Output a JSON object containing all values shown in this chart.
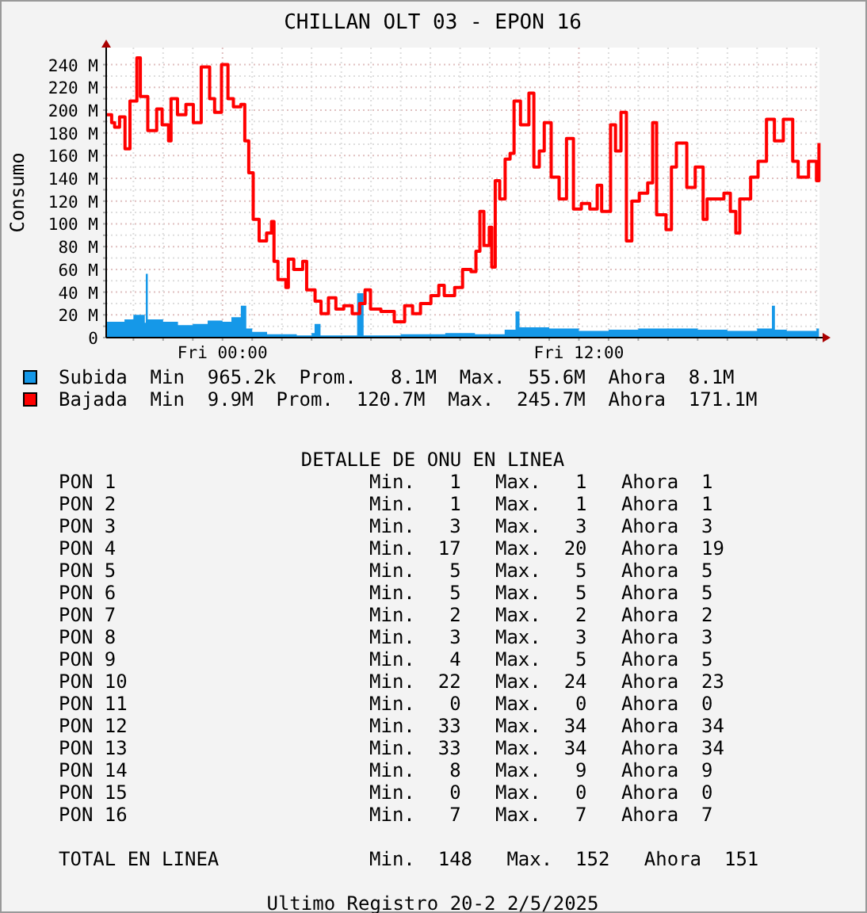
{
  "chart_data": {
    "type": "line",
    "title": "CHILLAN OLT 03 - EPON 16",
    "ylabel": "Consumo",
    "xlim": [
      "2025-05-01T20:05",
      "2025-05-02T20:06"
    ],
    "xticks": [
      {
        "value": "2025-05-01T21:00",
        "label": null
      },
      {
        "value": "2025-05-01T22:00",
        "label": null
      },
      {
        "value": "2025-05-01T23:00",
        "label": null
      },
      {
        "value": "2025-05-02T00:00",
        "label": "Fri 00:00"
      },
      {
        "value": "2025-05-02T01:00",
        "label": null
      },
      {
        "value": "2025-05-02T02:00",
        "label": null
      },
      {
        "value": "2025-05-02T03:00",
        "label": null
      },
      {
        "value": "2025-05-02T04:00",
        "label": null
      },
      {
        "value": "2025-05-02T05:00",
        "label": null
      },
      {
        "value": "2025-05-02T06:00",
        "label": null
      },
      {
        "value": "2025-05-02T07:00",
        "label": null
      },
      {
        "value": "2025-05-02T08:00",
        "label": null
      },
      {
        "value": "2025-05-02T09:00",
        "label": null
      },
      {
        "value": "2025-05-02T10:00",
        "label": null
      },
      {
        "value": "2025-05-02T11:00",
        "label": null
      },
      {
        "value": "2025-05-02T12:00",
        "label": "Fri 12:00"
      },
      {
        "value": "2025-05-02T13:00",
        "label": null
      },
      {
        "value": "2025-05-02T14:00",
        "label": null
      },
      {
        "value": "2025-05-02T15:00",
        "label": null
      },
      {
        "value": "2025-05-02T16:00",
        "label": null
      },
      {
        "value": "2025-05-02T17:00",
        "label": null
      },
      {
        "value": "2025-05-02T18:00",
        "label": null
      },
      {
        "value": "2025-05-02T19:00",
        "label": null
      },
      {
        "value": "2025-05-02T20:00",
        "label": null
      }
    ],
    "ylim": [
      0,
      255
    ],
    "yticks": [
      {
        "value": 0,
        "label": "0"
      },
      {
        "value": 10,
        "label": null
      },
      {
        "value": 20,
        "label": "20 M"
      },
      {
        "value": 30,
        "label": null
      },
      {
        "value": 40,
        "label": "40 M"
      },
      {
        "value": 50,
        "label": null
      },
      {
        "value": 60,
        "label": "60 M"
      },
      {
        "value": 70,
        "label": null
      },
      {
        "value": 80,
        "label": "80 M"
      },
      {
        "value": 90,
        "label": null
      },
      {
        "value": 100,
        "label": "100 M"
      },
      {
        "value": 110,
        "label": null
      },
      {
        "value": 120,
        "label": "120 M"
      },
      {
        "value": 130,
        "label": null
      },
      {
        "value": 140,
        "label": "140 M"
      },
      {
        "value": 150,
        "label": null
      },
      {
        "value": 160,
        "label": "160 M"
      },
      {
        "value": 170,
        "label": null
      },
      {
        "value": 180,
        "label": "180 M"
      },
      {
        "value": 190,
        "label": null
      },
      {
        "value": 200,
        "label": "200 M"
      },
      {
        "value": 210,
        "label": null
      },
      {
        "value": 220,
        "label": "220 M"
      },
      {
        "value": 230,
        "label": null
      },
      {
        "value": 240,
        "label": "240 M"
      }
    ],
    "grid": true,
    "legend": "bottom",
    "series": [
      {
        "name": "Subida",
        "type": "area",
        "color": "#1598e8",
        "x": [
          "2025-05-01T20:05",
          "2025-05-01T20:42",
          "2025-05-01T21:00",
          "2025-05-01T21:23",
          "2025-05-01T21:25",
          "2025-05-01T21:29",
          "2025-05-01T22:00",
          "2025-05-01T22:30",
          "2025-05-01T23:00",
          "2025-05-01T23:30",
          "2025-05-02T00:00",
          "2025-05-02T00:18",
          "2025-05-02T00:37",
          "2025-05-02T00:48",
          "2025-05-02T01:00",
          "2025-05-02T01:30",
          "2025-05-02T02:30",
          "2025-05-02T03:00",
          "2025-05-02T03:06",
          "2025-05-02T03:18",
          "2025-05-02T04:30",
          "2025-05-02T04:32",
          "2025-05-02T04:45",
          "2025-05-02T06:00",
          "2025-05-02T07:30",
          "2025-05-02T08:30",
          "2025-05-02T09:30",
          "2025-05-02T09:52",
          "2025-05-02T10:00",
          "2025-05-02T11:00",
          "2025-05-02T12:00",
          "2025-05-02T13:00",
          "2025-05-02T14:00",
          "2025-05-02T15:00",
          "2025-05-02T16:00",
          "2025-05-02T17:00",
          "2025-05-02T18:00",
          "2025-05-02T18:30",
          "2025-05-02T18:36",
          "2025-05-02T19:00",
          "2025-05-02T20:00",
          "2025-05-02T20:05"
        ],
        "values": [
          14,
          16,
          20,
          13,
          56,
          16,
          14,
          11,
          12,
          15,
          14,
          18,
          28,
          8,
          5,
          3,
          2,
          4,
          12,
          2,
          2,
          39,
          2,
          3,
          4,
          3,
          7,
          23,
          9,
          8,
          6,
          7,
          8,
          8,
          7,
          6,
          8,
          28,
          7,
          6,
          8,
          8
        ]
      },
      {
        "name": "Bajada",
        "type": "step",
        "color": "#ff0000",
        "x": [
          "2025-05-01T20:05",
          "2025-05-01T20:16",
          "2025-05-01T20:22",
          "2025-05-01T20:32",
          "2025-05-01T20:43",
          "2025-05-01T20:53",
          "2025-05-01T21:07",
          "2025-05-01T21:14",
          "2025-05-01T21:29",
          "2025-05-01T21:47",
          "2025-05-01T21:58",
          "2025-05-01T22:11",
          "2025-05-01T22:16",
          "2025-05-01T22:29",
          "2025-05-01T22:46",
          "2025-05-01T23:01",
          "2025-05-01T23:17",
          "2025-05-01T23:34",
          "2025-05-01T23:44",
          "2025-05-01T23:58",
          "2025-05-02T00:11",
          "2025-05-02T00:22",
          "2025-05-02T00:37",
          "2025-05-02T00:45",
          "2025-05-02T00:53",
          "2025-05-02T01:02",
          "2025-05-02T01:14",
          "2025-05-02T01:29",
          "2025-05-02T01:39",
          "2025-05-02T01:44",
          "2025-05-02T01:52",
          "2025-05-02T02:08",
          "2025-05-02T02:13",
          "2025-05-02T02:24",
          "2025-05-02T02:42",
          "2025-05-02T02:50",
          "2025-05-02T03:07",
          "2025-05-02T03:19",
          "2025-05-02T03:34",
          "2025-05-02T03:49",
          "2025-05-02T04:05",
          "2025-05-02T04:22",
          "2025-05-02T04:37",
          "2025-05-02T04:48",
          "2025-05-02T04:59",
          "2025-05-02T05:20",
          "2025-05-02T05:47",
          "2025-05-02T06:08",
          "2025-05-02T06:24",
          "2025-05-02T06:40",
          "2025-05-02T06:56",
          "2025-05-02T07:01",
          "2025-05-02T07:17",
          "2025-05-02T07:28",
          "2025-05-02T07:49",
          "2025-05-02T08:05",
          "2025-05-02T08:22",
          "2025-05-02T08:32",
          "2025-05-02T08:40",
          "2025-05-02T08:48",
          "2025-05-02T08:59",
          "2025-05-02T09:04",
          "2025-05-02T09:11",
          "2025-05-02T09:20",
          "2025-05-02T09:31",
          "2025-05-02T09:41",
          "2025-05-02T09:49",
          "2025-05-02T10:02",
          "2025-05-02T10:19",
          "2025-05-02T10:29",
          "2025-05-02T10:40",
          "2025-05-02T10:50",
          "2025-05-02T11:04",
          "2025-05-02T11:20",
          "2025-05-02T11:35",
          "2025-05-02T11:49",
          "2025-05-02T12:05",
          "2025-05-02T12:22",
          "2025-05-02T12:37",
          "2025-05-02T12:46",
          "2025-05-02T13:04",
          "2025-05-02T13:14",
          "2025-05-02T13:25",
          "2025-05-02T13:36",
          "2025-05-02T13:47",
          "2025-05-02T14:02",
          "2025-05-02T14:19",
          "2025-05-02T14:29",
          "2025-05-02T14:37",
          "2025-05-02T14:56",
          "2025-05-02T15:07",
          "2025-05-02T15:17",
          "2025-05-02T15:38",
          "2025-05-02T15:55",
          "2025-05-02T16:11",
          "2025-05-02T16:19",
          "2025-05-02T16:37",
          "2025-05-02T16:53",
          "2025-05-02T17:06",
          "2025-05-02T17:17",
          "2025-05-02T17:25",
          "2025-05-02T17:47",
          "2025-05-02T18:02",
          "2025-05-02T18:19",
          "2025-05-02T18:35",
          "2025-05-02T18:53",
          "2025-05-02T19:12",
          "2025-05-02T19:23",
          "2025-05-02T19:44",
          "2025-05-02T20:00",
          "2025-05-02T20:05"
        ],
        "values": [
          196,
          189,
          185,
          194,
          166,
          208,
          246,
          212,
          182,
          201,
          187,
          173,
          210,
          196,
          205,
          189,
          238,
          210,
          198,
          240,
          210,
          203,
          205,
          173,
          145,
          104,
          85,
          92,
          102,
          67,
          51,
          44,
          69,
          60,
          67,
          42,
          32,
          21,
          35,
          25,
          28,
          21,
          30,
          42,
          25,
          23,
          14,
          28,
          21,
          30,
          30,
          37,
          46,
          37,
          44,
          60,
          58,
          76,
          111,
          81,
          97,
          62,
          138,
          122,
          157,
          162,
          208,
          187,
          215,
          150,
          164,
          189,
          141,
          122,
          175,
          113,
          118,
          113,
          134,
          111,
          187,
          164,
          198,
          85,
          120,
          127,
          136,
          189,
          108,
          95,
          150,
          171,
          132,
          150,
          104,
          122,
          122,
          127,
          111,
          92,
          122,
          141,
          155,
          192,
          173,
          192,
          155,
          141,
          155,
          138,
          171
        ]
      }
    ],
    "annotations": [
      "Min  965.2k  Prom.   8.1M  Max.  55.6M  Ahora  8.1M",
      "Min  9.9M  Prom.  120.7M  Max.  245.7M  Ahora  171.1M",
      "DETALLE DE ONU EN LINEA",
      "PON 1",
      "Min.   1   Max.   1   Ahora  1",
      "PON 2",
      "Min.   1   Max.   1   Ahora  1",
      "PON 3",
      "Min.   3   Max.   3   Ahora  3",
      "PON 4",
      "Min.  17   Max.  20   Ahora  19",
      "PON 5",
      "Min.   5   Max.   5   Ahora  5",
      "PON 6",
      "Min.   5   Max.   5   Ahora  5",
      "PON 7",
      "Min.   2   Max.   2   Ahora  2",
      "PON 8",
      "Min.   3   Max.   3   Ahora  3",
      "PON 9",
      "Min.   4   Max.   5   Ahora  5",
      "PON 10",
      "Min.  22   Max.  24   Ahora  23",
      "PON 11",
      "Min.   0   Max.   0   Ahora  0",
      "PON 12",
      "Min.  33   Max.  34   Ahora  34",
      "PON 13",
      "Min.  33   Max.  34   Ahora  34",
      "PON 14",
      "Min.   8   Max.   9   Ahora  9",
      "PON 15",
      "Min.   0   Max.   0   Ahora  0",
      "PON 16",
      "Min.   7   Max.   7   Ahora  7",
      "TOTAL EN LINEA",
      "Min.  148   Max.  152   Ahora  151",
      "Ultimo Registro 20-2 2/5/2025"
    ]
  }
}
